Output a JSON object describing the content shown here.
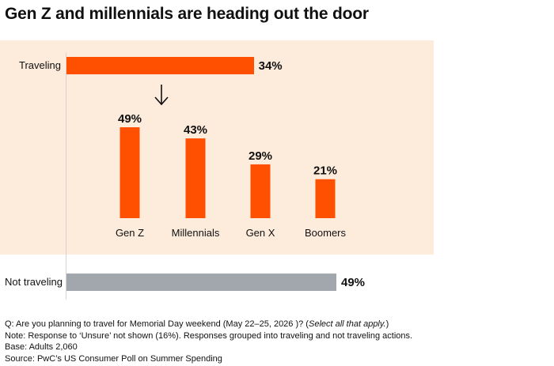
{
  "title": "Gen Z and millennials are heading out the door",
  "colors": {
    "accent": "#fe5000",
    "neutral": "#a2a6ad",
    "panel": "#fdebdc"
  },
  "chart_data": [
    {
      "type": "bar",
      "orientation": "horizontal",
      "categories": [
        "Traveling",
        "Not traveling"
      ],
      "values": [
        34,
        49
      ],
      "value_labels": [
        "34%",
        "49%"
      ],
      "xlim": [
        0,
        49
      ]
    },
    {
      "type": "bar",
      "categories": [
        "Gen Z",
        "Millennials",
        "Gen X",
        "Boomers"
      ],
      "values": [
        49,
        43,
        29,
        21
      ],
      "value_labels": [
        "49%",
        "43%",
        "29%",
        "21%"
      ],
      "ylim": [
        0,
        49
      ]
    }
  ],
  "footnotes": {
    "question_prefix": "Q: Are you planning to travel for Memorial Day weekend (May 22–25, 2026 )? (",
    "question_select": "Select all that apply.",
    "question_suffix": ")",
    "note": "Note: Response to ‘Unsure’ not shown (16%). Responses grouped into traveling and not traveling actions.",
    "base": "Base: Adults 2,060",
    "source": "Source: PwC’s US Consumer Poll on Summer Spending"
  }
}
